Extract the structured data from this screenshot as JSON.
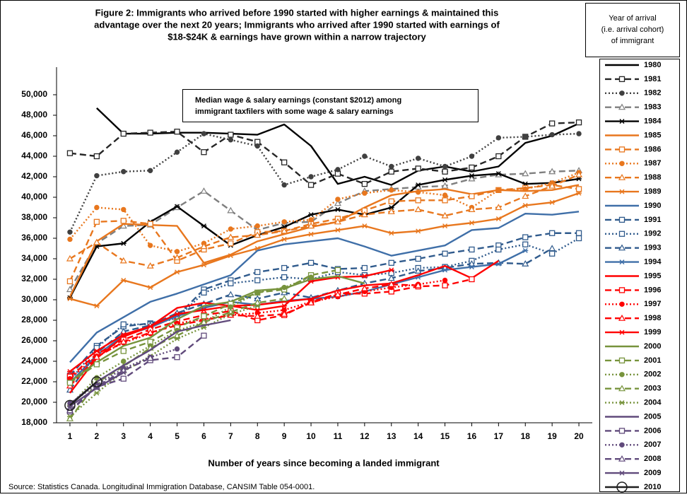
{
  "chart_data": {
    "type": "line",
    "title": [
      "Figure 2: Immigrants who arrived before 1990 started with higher earnings & maintained this",
      "advantage over the next 20 years; Immigrants who arrived after 1990 started with earnings of",
      "$18-$24K & earnings have grown within a narrow trajectory"
    ],
    "legend_title": [
      "Year of arrival",
      "(i.e. arrival cohort)",
      "of immigrant"
    ],
    "annotation": [
      "Median wage & salary earnings (constant $2012) among",
      "immigrant taxfilers with some wage & salary earnings"
    ],
    "xlabel": "Number of years since becoming a landed immigrant",
    "source": "Source:  Statistics Canada. Longitudinal Immigration Database, CANSIM Table 054-0001.",
    "x": [
      1,
      2,
      3,
      4,
      5,
      6,
      7,
      8,
      9,
      10,
      11,
      12,
      13,
      14,
      15,
      16,
      17,
      18,
      19,
      20
    ],
    "xlim": [
      0.5,
      20.5
    ],
    "xticks": [
      1,
      2,
      3,
      4,
      5,
      6,
      7,
      8,
      9,
      10,
      11,
      12,
      13,
      14,
      15,
      16,
      17,
      18,
      19,
      20
    ],
    "ylim": [
      18000,
      50000
    ],
    "yticks": [
      {
        "value": 18000,
        "label": "18,000"
      },
      {
        "value": 20000,
        "label": "20,000"
      },
      {
        "value": 22000,
        "label": "22,000"
      },
      {
        "value": 24000,
        "label": "24,000"
      },
      {
        "value": 26000,
        "label": "26,000"
      },
      {
        "value": 28000,
        "label": "28,000"
      },
      {
        "value": 30000,
        "label": "30,000"
      },
      {
        "value": 32000,
        "label": "32,000"
      },
      {
        "value": 34000,
        "label": "34,000"
      },
      {
        "value": 36000,
        "label": "36,000"
      },
      {
        "value": 38000,
        "label": "38,000"
      },
      {
        "value": 40000,
        "label": "40,000"
      },
      {
        "value": 42000,
        "label": "42,000"
      },
      {
        "value": 44000,
        "label": "44,000"
      },
      {
        "value": 46000,
        "label": "46,000"
      },
      {
        "value": 48000,
        "label": "48,000"
      },
      {
        "value": 50000,
        "label": "50,000"
      }
    ],
    "grid": false,
    "series": [
      {
        "name": "1980",
        "color": "#000000",
        "dash": "solid",
        "marker": "none",
        "values": [
          null,
          48700,
          46200,
          46200,
          46300,
          46300,
          46200,
          46100,
          47100,
          45000,
          41300,
          42000,
          41200,
          42600,
          43000,
          42500,
          43000,
          45300,
          46000,
          47200
        ]
      },
      {
        "name": "1981",
        "color": "#262626",
        "dash": "dashed",
        "marker": "square",
        "values": [
          44300,
          44000,
          46200,
          46300,
          46400,
          44400,
          46100,
          45400,
          43400,
          41200,
          42300,
          41300,
          42500,
          42800,
          42500,
          42900,
          44000,
          45900,
          47200,
          47300
        ]
      },
      {
        "name": "1982",
        "color": "#404040",
        "dash": "dotted",
        "marker": "circle",
        "values": [
          36600,
          42100,
          42500,
          42600,
          44400,
          46200,
          45600,
          45000,
          41200,
          42000,
          42700,
          44000,
          43000,
          43800,
          43000,
          44000,
          45800,
          45900,
          46100,
          46200
        ]
      },
      {
        "name": "1983",
        "color": "#7f7f7f",
        "dash": "dashed",
        "marker": "triangle",
        "values": [
          31000,
          35500,
          37200,
          37300,
          39000,
          40600,
          38700,
          36800,
          37500,
          37600,
          39400,
          40600,
          40800,
          41000,
          41100,
          41800,
          42200,
          42300,
          42500,
          42600
        ]
      },
      {
        "name": "1984",
        "color": "#000000",
        "dash": "solid",
        "marker": "star",
        "values": [
          30200,
          35200,
          35500,
          37600,
          39100,
          37200,
          35300,
          36300,
          37100,
          38300,
          38800,
          38300,
          39000,
          41200,
          41700,
          42100,
          42300,
          41300,
          41400,
          41800
        ]
      },
      {
        "name": "1985",
        "color": "#e8771e",
        "dash": "solid",
        "marker": "none",
        "values": [
          30300,
          35700,
          37400,
          37300,
          37200,
          33600,
          34400,
          35700,
          36400,
          37100,
          37600,
          39000,
          40200,
          40600,
          40800,
          40300,
          40700,
          40600,
          40700,
          41200
        ]
      },
      {
        "name": "1986",
        "color": "#e8771e",
        "dash": "dashed",
        "marker": "square",
        "values": [
          31800,
          37600,
          37700,
          37400,
          33800,
          34900,
          35500,
          36600,
          36700,
          37400,
          37900,
          38700,
          39600,
          39700,
          39700,
          40100,
          40700,
          40900,
          41200,
          40800
        ]
      },
      {
        "name": "1987",
        "color": "#e8771e",
        "dash": "dotted",
        "marker": "circle",
        "values": [
          35900,
          39000,
          38800,
          35300,
          34700,
          35500,
          36900,
          37200,
          37600,
          37800,
          39800,
          40400,
          40700,
          40500,
          40200,
          39000,
          40700,
          40800,
          41400,
          42400
        ]
      },
      {
        "name": "1988",
        "color": "#e8771e",
        "dash": "dashed",
        "marker": "triangle",
        "values": [
          34000,
          35600,
          33800,
          33300,
          34100,
          35200,
          36100,
          36300,
          36700,
          37200,
          37600,
          38300,
          38600,
          38800,
          38200,
          38800,
          39000,
          40100,
          41100,
          42200
        ]
      },
      {
        "name": "1989",
        "color": "#e8771e",
        "dash": "solid",
        "marker": "star",
        "values": [
          30100,
          29400,
          31900,
          31200,
          32700,
          33400,
          34300,
          35000,
          35900,
          36400,
          36800,
          37200,
          36500,
          36700,
          37200,
          37500,
          37900,
          39200,
          39500,
          40400
        ]
      },
      {
        "name": "1990",
        "color": "#3f6fa8",
        "dash": "solid",
        "marker": "none",
        "values": [
          23900,
          26800,
          28300,
          29800,
          30600,
          31500,
          32400,
          34800,
          35400,
          35700,
          36000,
          35200,
          34300,
          34800,
          35300,
          36800,
          37000,
          38400,
          38300,
          38600
        ]
      },
      {
        "name": "1991",
        "color": "#2f5a8c",
        "dash": "dashed",
        "marker": "square",
        "values": [
          22600,
          25500,
          27400,
          27700,
          28400,
          31000,
          31900,
          32700,
          33100,
          33600,
          33000,
          33100,
          33600,
          34000,
          34500,
          34900,
          35300,
          36100,
          36500,
          36500
        ]
      },
      {
        "name": "1992",
        "color": "#2f5a8c",
        "dash": "dotted",
        "marker": "square",
        "values": [
          22100,
          25300,
          27600,
          27600,
          28200,
          30700,
          31600,
          31900,
          32200,
          32000,
          32700,
          32400,
          32600,
          33100,
          33200,
          33800,
          34900,
          35400,
          34500,
          36000
        ]
      },
      {
        "name": "1993",
        "color": "#2f5a8c",
        "dash": "dashed",
        "marker": "triangle",
        "values": [
          21200,
          24800,
          26900,
          27500,
          28700,
          29600,
          30500,
          30100,
          30700,
          30200,
          30900,
          31600,
          32100,
          32800,
          33100,
          33500,
          33600,
          33500,
          35000,
          null
        ]
      },
      {
        "name": "1994",
        "color": "#3f6fa8",
        "dash": "solid",
        "marker": "star",
        "values": [
          21900,
          24600,
          26500,
          27300,
          28400,
          29200,
          29800,
          29500,
          29900,
          30100,
          30300,
          30800,
          31500,
          32200,
          32900,
          33200,
          33500,
          34800,
          null,
          null
        ]
      },
      {
        "name": "1995",
        "color": "#ff0000",
        "dash": "solid",
        "marker": "none",
        "values": [
          20900,
          24300,
          26400,
          27400,
          29200,
          29700,
          29400,
          29500,
          29800,
          30100,
          30900,
          31400,
          31600,
          32400,
          33300,
          32100,
          33800,
          null,
          null,
          null
        ]
      },
      {
        "name": "1996",
        "color": "#ff0000",
        "dash": "dashed",
        "marker": "square",
        "values": [
          22500,
          24700,
          26100,
          27100,
          27900,
          28500,
          28900,
          28000,
          28500,
          29800,
          30600,
          30600,
          30800,
          31300,
          31400,
          32000,
          null,
          null,
          null,
          null
        ]
      },
      {
        "name": "1997",
        "color": "#ff0000",
        "dash": "dotted",
        "marker": "circle",
        "values": [
          22300,
          24500,
          25800,
          26700,
          27700,
          28100,
          28500,
          28700,
          29000,
          29800,
          30300,
          30800,
          31200,
          31500,
          31900,
          null,
          null,
          null,
          null,
          null
        ]
      },
      {
        "name": "1998",
        "color": "#ff0000",
        "dash": "dashed",
        "marker": "triangle",
        "values": [
          21600,
          24400,
          25900,
          26800,
          27500,
          28000,
          28500,
          28400,
          28600,
          29700,
          30500,
          31100,
          31500,
          31400,
          null,
          null,
          null,
          null,
          null,
          null
        ]
      },
      {
        "name": "1999",
        "color": "#ff0000",
        "dash": "solid",
        "marker": "star",
        "values": [
          23000,
          25000,
          26600,
          27400,
          28600,
          29000,
          29400,
          29000,
          29400,
          31800,
          32200,
          32300,
          32900,
          null,
          null,
          null,
          null,
          null,
          null,
          null
        ]
      },
      {
        "name": "2000",
        "color": "#77933c",
        "dash": "solid",
        "marker": "none",
        "values": [
          22000,
          23900,
          25500,
          26300,
          28100,
          29400,
          29800,
          30900,
          31100,
          32000,
          32300,
          31600,
          null,
          null,
          null,
          null,
          null,
          null,
          null,
          null
        ]
      },
      {
        "name": "2001",
        "color": "#77933c",
        "dash": "dashed",
        "marker": "square",
        "values": [
          21900,
          23700,
          25000,
          25900,
          27300,
          28400,
          29600,
          30700,
          31000,
          32400,
          32900,
          null,
          null,
          null,
          null,
          null,
          null,
          null,
          null,
          null
        ]
      },
      {
        "name": "2002",
        "color": "#77933c",
        "dash": "dotted",
        "marker": "circle",
        "values": [
          19700,
          22400,
          24000,
          25500,
          27000,
          27800,
          29300,
          30700,
          31200,
          32200,
          null,
          null,
          null,
          null,
          null,
          null,
          null,
          null,
          null,
          null
        ]
      },
      {
        "name": "2003",
        "color": "#77933c",
        "dash": "dashed",
        "marker": "triangle",
        "values": [
          18400,
          21900,
          23500,
          25300,
          26500,
          27800,
          28800,
          29700,
          30100,
          null,
          null,
          null,
          null,
          null,
          null,
          null,
          null,
          null,
          null,
          null
        ]
      },
      {
        "name": "2004",
        "color": "#77933c",
        "dash": "dotted",
        "marker": "star",
        "values": [
          18600,
          20900,
          23000,
          24500,
          26200,
          27300,
          28600,
          29400,
          null,
          null,
          null,
          null,
          null,
          null,
          null,
          null,
          null,
          null,
          null,
          null
        ]
      },
      {
        "name": "2005",
        "color": "#604a7b",
        "dash": "solid",
        "marker": "none",
        "values": [
          19800,
          22000,
          23600,
          25100,
          26900,
          27500,
          28000,
          null,
          null,
          null,
          null,
          null,
          null,
          null,
          null,
          null,
          null,
          null,
          null,
          null
        ]
      },
      {
        "name": "2006",
        "color": "#604a7b",
        "dash": "dashed",
        "marker": "square",
        "values": [
          19100,
          21500,
          22300,
          24100,
          24400,
          26500,
          null,
          null,
          null,
          null,
          null,
          null,
          null,
          null,
          null,
          null,
          null,
          null,
          null,
          null
        ]
      },
      {
        "name": "2007",
        "color": "#604a7b",
        "dash": "dotted",
        "marker": "circle",
        "values": [
          19900,
          21700,
          23300,
          24400,
          25200,
          null,
          null,
          null,
          null,
          null,
          null,
          null,
          null,
          null,
          null,
          null,
          null,
          null,
          null,
          null
        ]
      },
      {
        "name": "2008",
        "color": "#604a7b",
        "dash": "dashed",
        "marker": "triangle",
        "values": [
          19200,
          21500,
          23100,
          24300,
          null,
          null,
          null,
          null,
          null,
          null,
          null,
          null,
          null,
          null,
          null,
          null,
          null,
          null,
          null,
          null
        ]
      },
      {
        "name": "2009",
        "color": "#604a7b",
        "dash": "solid",
        "marker": "star",
        "values": [
          19600,
          21400,
          22900,
          null,
          null,
          null,
          null,
          null,
          null,
          null,
          null,
          null,
          null,
          null,
          null,
          null,
          null,
          null,
          null,
          null
        ]
      },
      {
        "name": "2010",
        "color": "#1f1f1f",
        "dash": "solid",
        "marker": "bigcircle",
        "values": [
          19700,
          22000,
          null,
          null,
          null,
          null,
          null,
          null,
          null,
          null,
          null,
          null,
          null,
          null,
          null,
          null,
          null,
          null,
          null,
          null
        ]
      }
    ]
  }
}
